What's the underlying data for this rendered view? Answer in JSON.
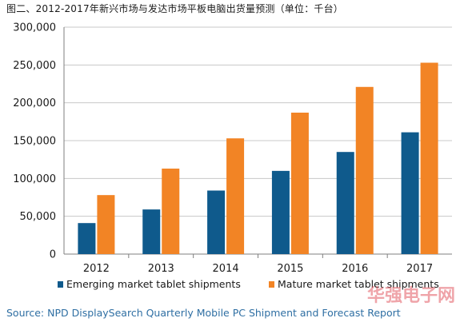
{
  "title": "图二、2012-2017年新兴市场与发达市场平板电脑出货量预测（单位：千台）",
  "source": "Source: NPD DisplaySearch Quarterly Mobile PC Shipment and Forecast Report",
  "watermark": "华强电子网",
  "colors": {
    "emerging": "#0f5a8c",
    "mature": "#f28425",
    "grid": "#c8c8c8",
    "axis": "#7f7f7f"
  },
  "chart_data": {
    "type": "bar",
    "categories": [
      "2012",
      "2013",
      "2014",
      "2015",
      "2016",
      "2017"
    ],
    "series": [
      {
        "name": "Emerging market tablet shipments",
        "values": [
          41000,
          59000,
          84000,
          110000,
          135000,
          161000
        ]
      },
      {
        "name": "Mature market tablet shipments",
        "values": [
          78000,
          113000,
          153000,
          187000,
          221000,
          253000
        ]
      }
    ],
    "ylim": [
      0,
      300000
    ],
    "yticks": [
      0,
      50000,
      100000,
      150000,
      200000,
      250000,
      300000
    ],
    "ytick_labels": [
      "0",
      "50,000",
      "100,000",
      "150,000",
      "200,000",
      "250,000",
      "300,000"
    ],
    "legend": "bottom",
    "grid": true
  }
}
